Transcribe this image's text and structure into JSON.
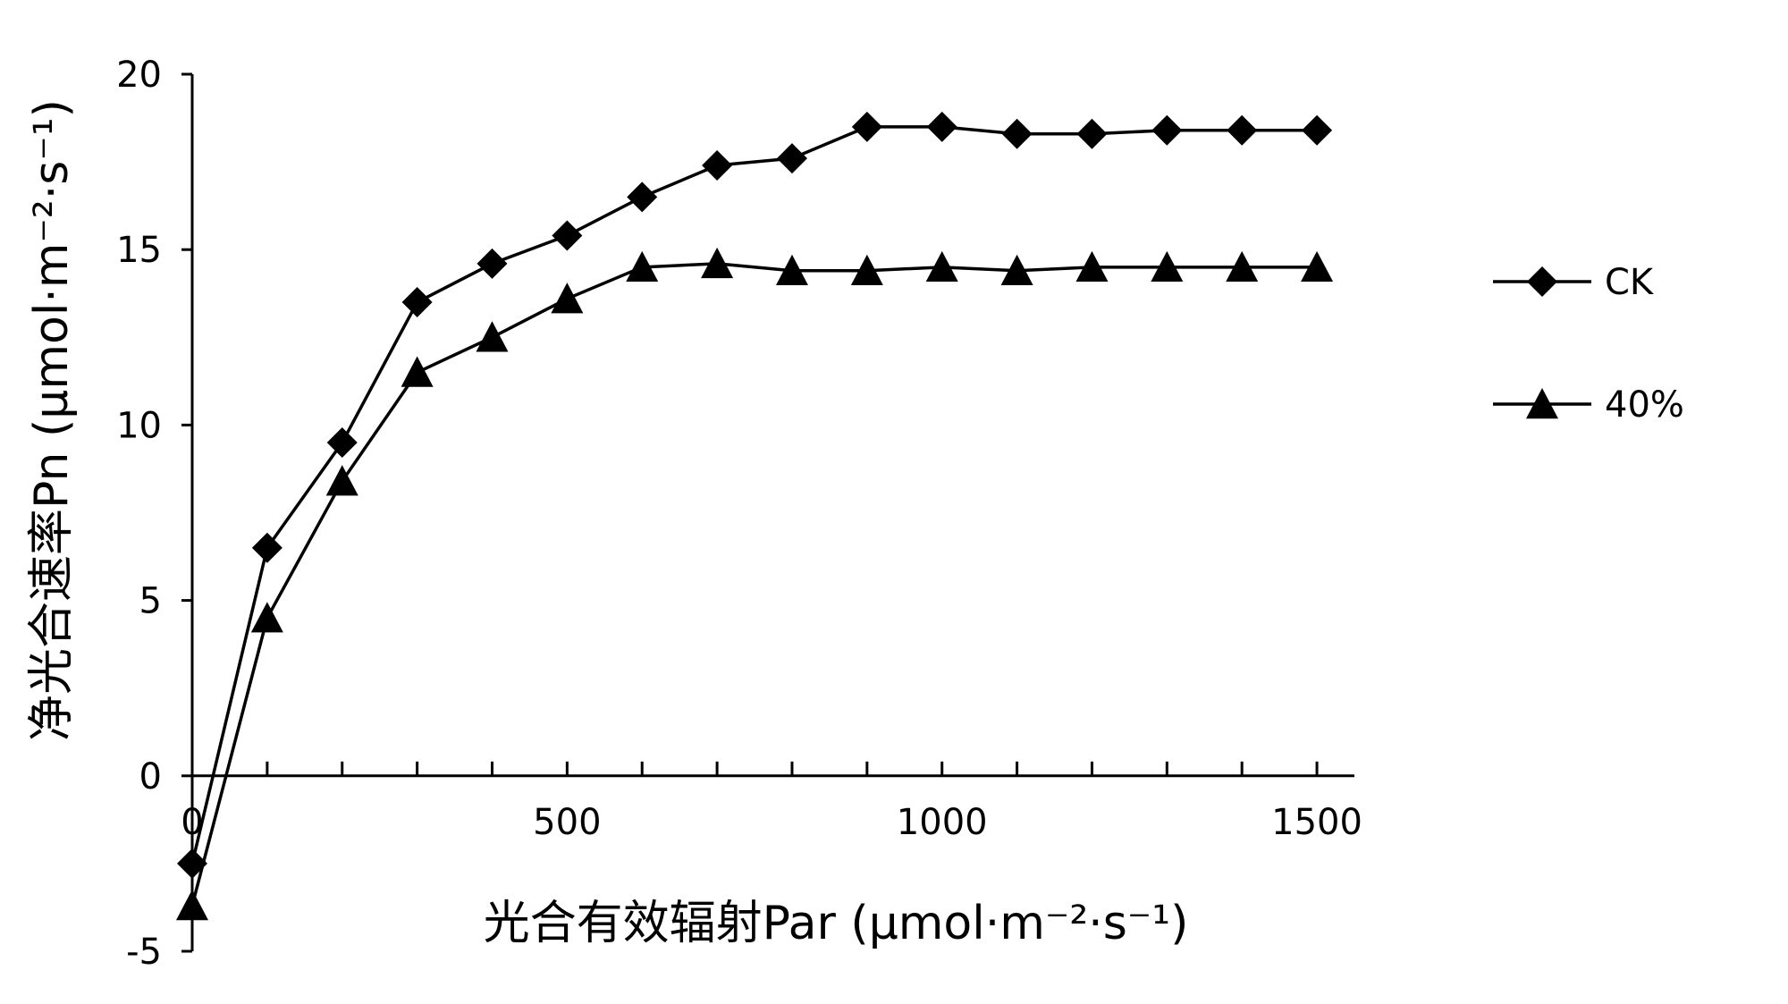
{
  "chart_data": {
    "type": "line",
    "title": "",
    "xlabel": "光合有效辐射Par (μmol·m⁻²·s⁻¹)",
    "ylabel": "净光合速率Pn (μmol·m⁻²·s⁻¹)",
    "xlim": [
      0,
      1550
    ],
    "ylim": [
      -5,
      20
    ],
    "xticks": [
      0,
      500,
      1000,
      1500
    ],
    "xtick_labels": [
      "0",
      "500",
      "1000",
      "1500"
    ],
    "yticks": [
      -5,
      0,
      5,
      10,
      15,
      20
    ],
    "ytick_labels": [
      "-5",
      "0",
      "5",
      "10",
      "15",
      "20"
    ],
    "x_minor_tick_step": 100,
    "grid": false,
    "legend_position": "right",
    "x": [
      0,
      100,
      200,
      300,
      400,
      500,
      600,
      700,
      800,
      900,
      1000,
      1100,
      1200,
      1300,
      1400,
      1500
    ],
    "series": [
      {
        "name": "CK",
        "marker": "diamond",
        "color": "#000000",
        "values": [
          -2.5,
          6.5,
          9.5,
          13.5,
          14.6,
          15.4,
          16.5,
          17.4,
          17.6,
          18.5,
          18.5,
          18.3,
          18.3,
          18.4,
          18.4,
          18.4
        ]
      },
      {
        "name": "40%",
        "marker": "triangle",
        "color": "#000000",
        "values": [
          -3.7,
          4.5,
          8.4,
          11.5,
          12.5,
          13.6,
          14.5,
          14.6,
          14.4,
          14.4,
          14.5,
          14.4,
          14.5,
          14.5,
          14.5,
          14.5
        ]
      }
    ]
  }
}
